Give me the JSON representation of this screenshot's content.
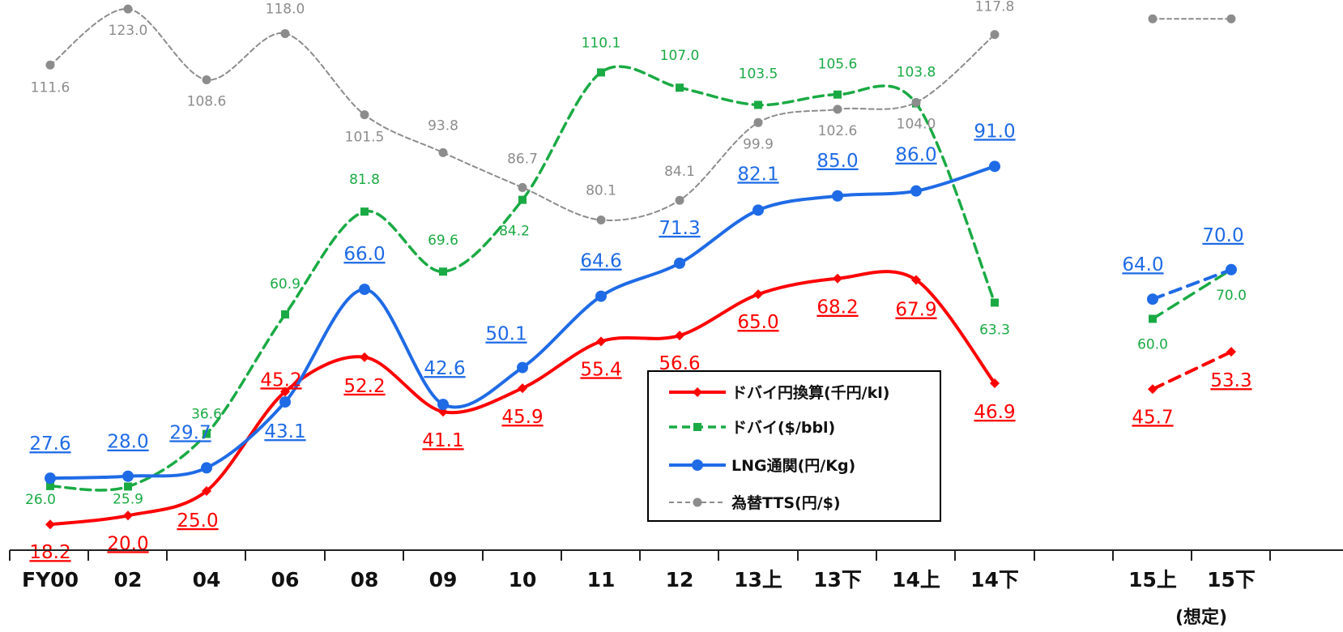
{
  "chart_data": {
    "type": "line",
    "categories": [
      "FY00",
      "02",
      "04",
      "06",
      "08",
      "09",
      "10",
      "11",
      "12",
      "13上",
      "13下",
      "14上",
      "14下",
      "",
      "15上",
      "15下"
    ],
    "footnote": "(想定)",
    "legend_position": "center-right",
    "grid": false,
    "series": [
      {
        "name": "ドバイ円換算(千円/kl)",
        "color": "#ff0000",
        "marker": "diamond",
        "style": "solid",
        "label_style": "underlined",
        "values": [
          18.2,
          20.0,
          25.0,
          45.2,
          52.2,
          41.1,
          45.9,
          55.4,
          56.6,
          65.0,
          68.2,
          67.9,
          46.9,
          null,
          null,
          null
        ],
        "forecast": [
          null,
          null,
          null,
          null,
          null,
          null,
          null,
          null,
          null,
          null,
          null,
          null,
          null,
          null,
          45.7,
          53.3
        ]
      },
      {
        "name": "ドバイ($/bbl)",
        "color": "#1aaa44",
        "marker": "square",
        "style": "dashed",
        "label_style": "plain",
        "values": [
          26.0,
          25.9,
          36.6,
          60.9,
          81.8,
          69.6,
          84.2,
          110.1,
          107.0,
          103.5,
          105.6,
          103.8,
          63.3,
          null,
          null,
          null
        ],
        "forecast": [
          null,
          null,
          null,
          null,
          null,
          null,
          null,
          null,
          null,
          null,
          null,
          null,
          null,
          null,
          60.0,
          70.0
        ]
      },
      {
        "name": "LNG通関(円/Kg)",
        "color": "#1f6be6",
        "marker": "circle",
        "style": "solid",
        "label_style": "underlined",
        "values": [
          27.6,
          28.0,
          29.7,
          43.1,
          66.0,
          42.6,
          50.1,
          64.6,
          71.3,
          82.1,
          85.0,
          86.0,
          91.0,
          null,
          null,
          null
        ],
        "forecast": [
          null,
          null,
          null,
          null,
          null,
          null,
          null,
          null,
          null,
          null,
          null,
          null,
          null,
          null,
          64.0,
          70.0
        ]
      },
      {
        "name": "為替TTS(円/$)",
        "color": "#8c8c8c",
        "marker": "circle",
        "style": "dashed",
        "label_style": "plain",
        "values": [
          111.6,
          123.0,
          108.6,
          118.0,
          101.5,
          93.8,
          86.7,
          80.1,
          84.1,
          99.9,
          102.6,
          104.0,
          117.8,
          null,
          null,
          null
        ],
        "forecast": [
          null,
          null,
          null,
          null,
          null,
          null,
          null,
          null,
          null,
          null,
          null,
          null,
          null,
          null,
          121.0,
          121.0
        ]
      }
    ]
  }
}
